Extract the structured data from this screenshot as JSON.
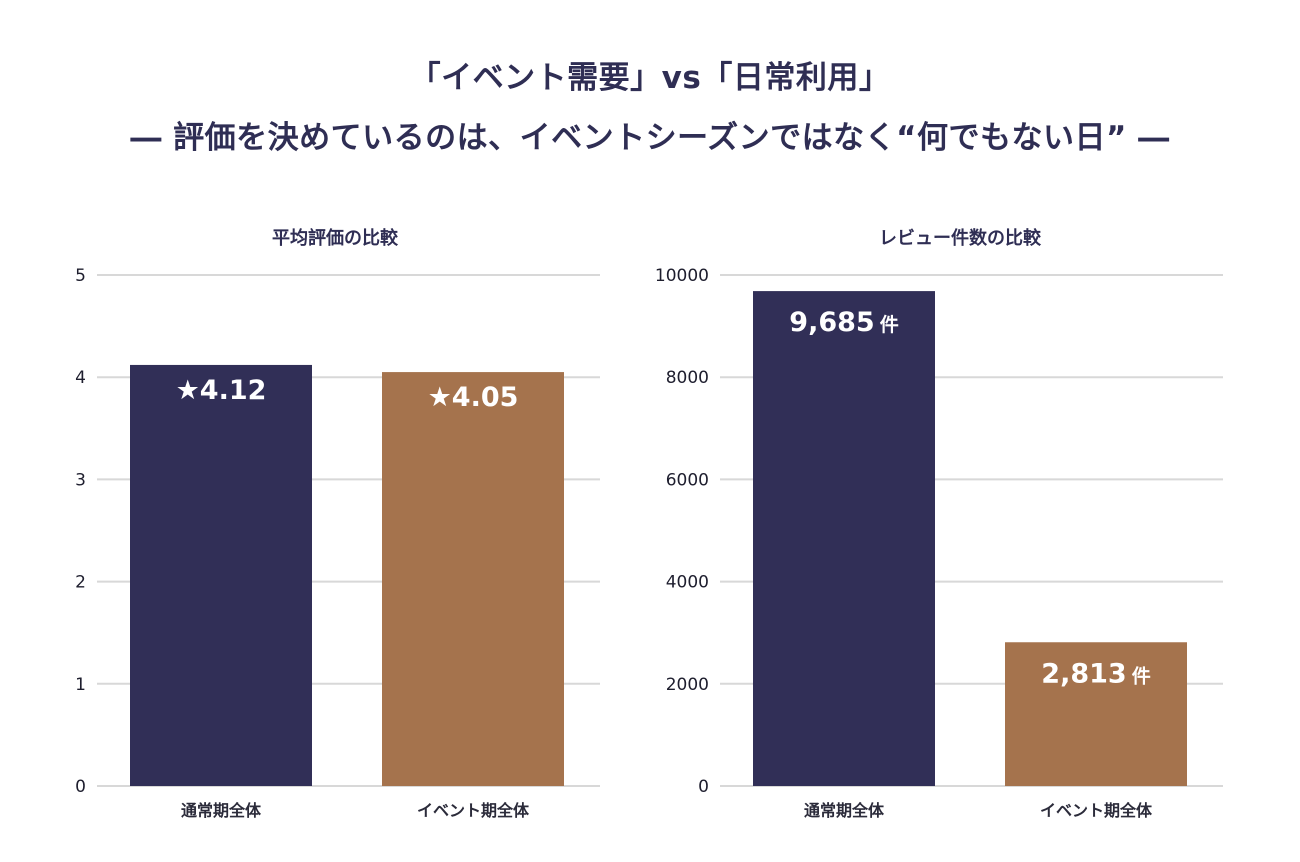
{
  "title": {
    "line1": "「イベント需要」vs「日常利用」",
    "line2": "― 評価を決めているのは、イベントシーズンではなく“何でもない日” ―"
  },
  "colors": {
    "navy": "#312f57",
    "brown": "#a5734d",
    "grid": "#d8d8d8",
    "text": "#2f2e54"
  },
  "chart_data": [
    {
      "type": "bar",
      "title": "平均評価の比較",
      "categories": [
        "通常期全体",
        "イベント期全体"
      ],
      "values": [
        4.12,
        4.05
      ],
      "data_labels": [
        "★4.12",
        "★4.05"
      ],
      "label_unit": "",
      "ylim": [
        0,
        5
      ],
      "yticks": [
        "0",
        "1",
        "2",
        "3",
        "4",
        "5"
      ],
      "xlabel": "",
      "ylabel": "",
      "grid": true
    },
    {
      "type": "bar",
      "title": "レビュー件数の比較",
      "categories": [
        "通常期全体",
        "イベント期全体"
      ],
      "values": [
        9685,
        2813
      ],
      "data_labels": [
        "9,685",
        "2,813"
      ],
      "label_unit": "件",
      "ylim": [
        0,
        10000
      ],
      "yticks": [
        "0",
        "2000",
        "4000",
        "6000",
        "8000",
        "10000"
      ],
      "xlabel": "",
      "ylabel": "",
      "grid": true
    }
  ]
}
